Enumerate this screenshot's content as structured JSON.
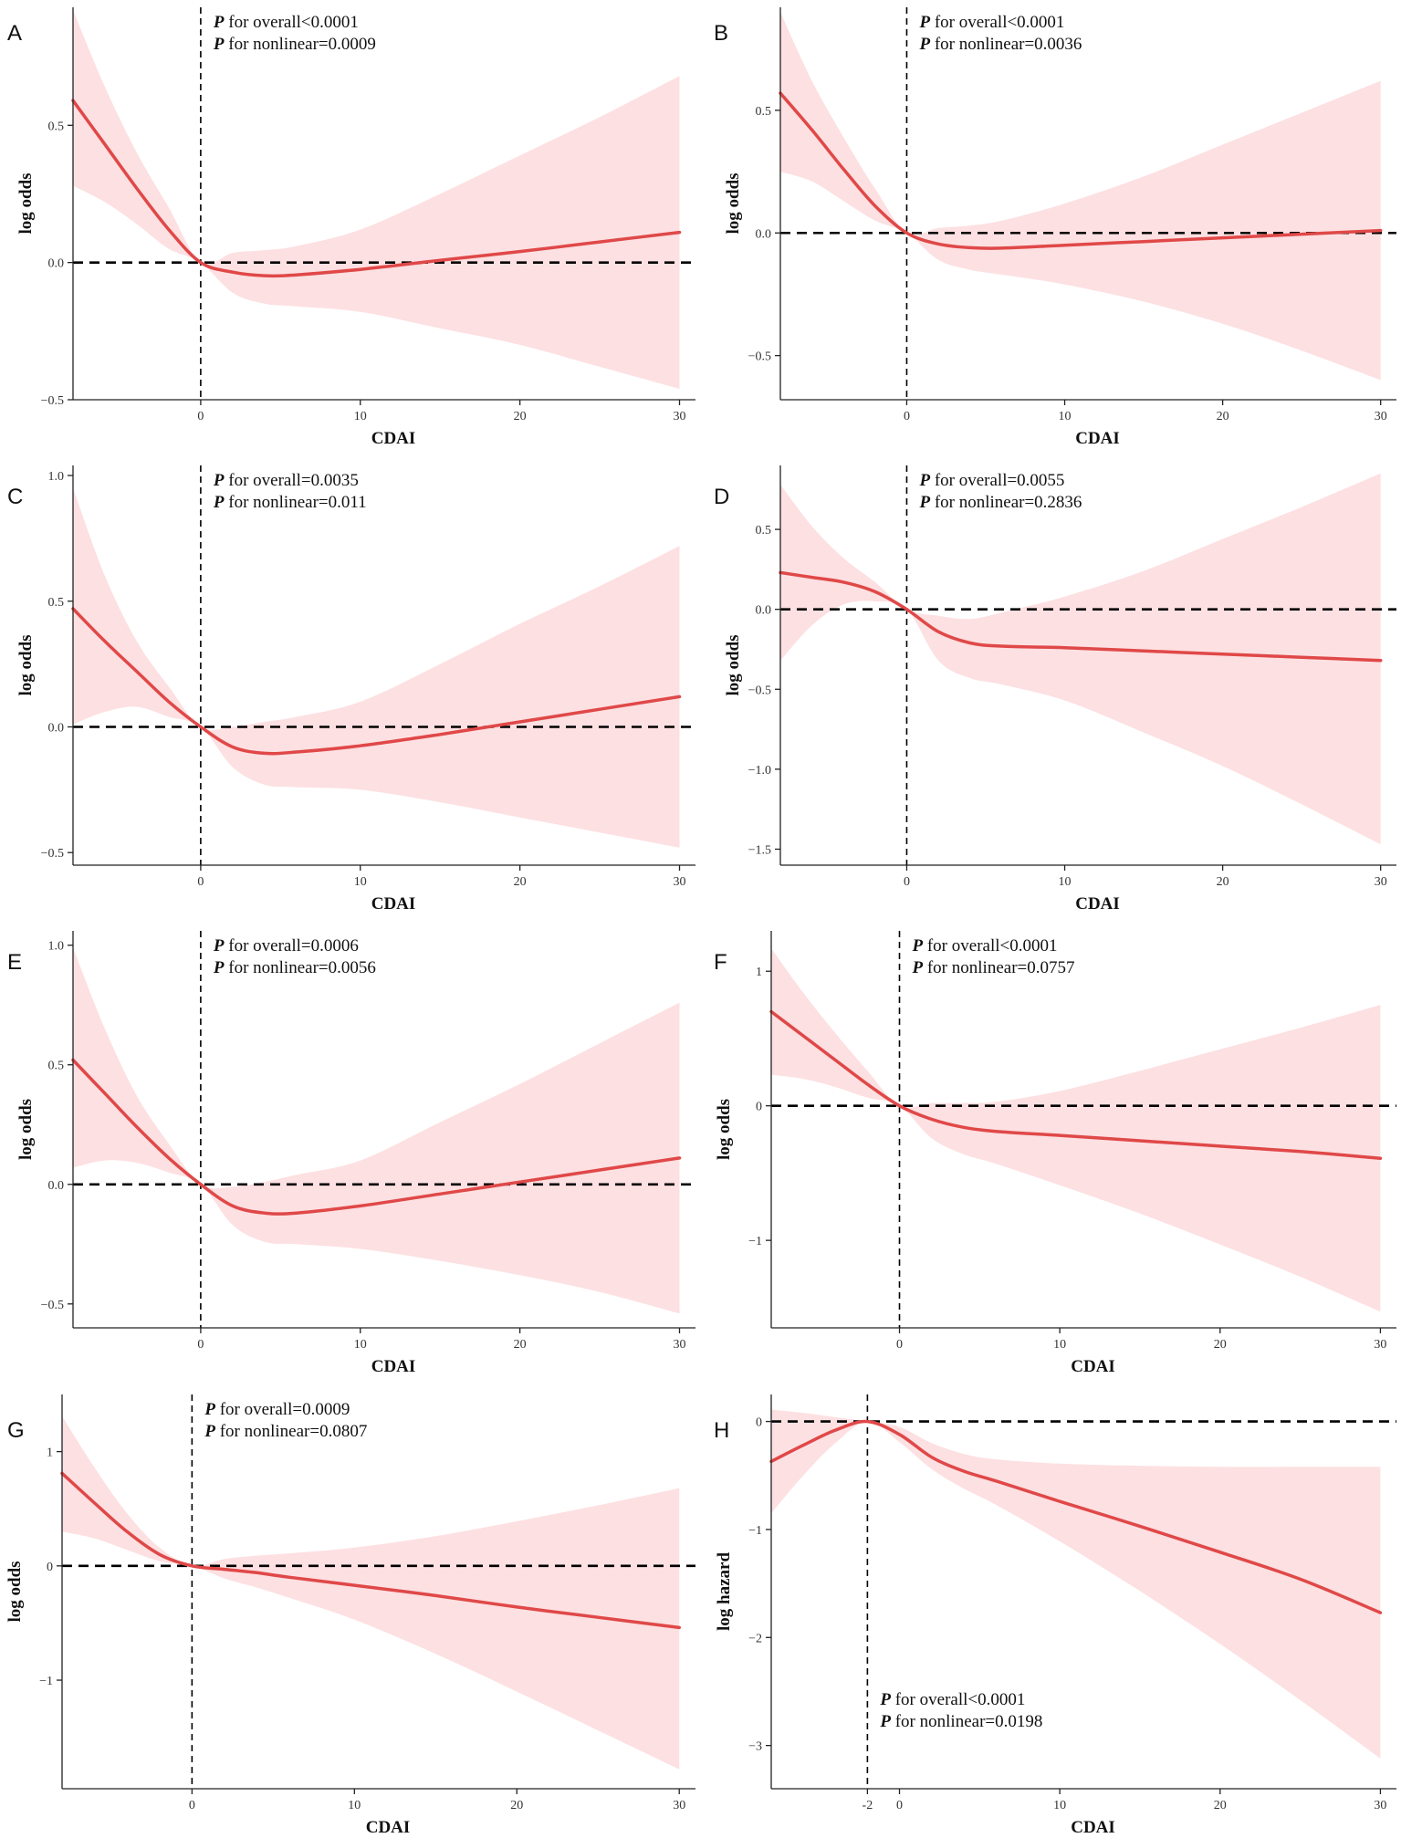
{
  "figure_colors": {
    "line": "#e04848",
    "band": "#fde0e2",
    "axis": "#222222"
  },
  "chart_data": [
    {
      "panel": "A",
      "type": "line",
      "xlabel": "CDAI",
      "ylabel": "log odds",
      "xlim": [
        -8,
        31
      ],
      "ylim": [
        -0.5,
        0.93
      ],
      "x_ticks": [
        0,
        10,
        20,
        30
      ],
      "y_ticks": [
        -0.5,
        0.0,
        0.5
      ],
      "x_tick_labels": [
        "0",
        "10",
        "20",
        "30"
      ],
      "y_tick_labels": [
        "−0.5",
        "0.0",
        "0.5"
      ],
      "ref_x": 0,
      "ref_y": 0,
      "p_overall": "P for overall<0.0001",
      "p_nonlinear": "P for nonlinear=0.0009",
      "p_position": "top",
      "x": [
        -8,
        -6,
        -4,
        -2,
        0,
        2,
        4,
        6,
        10,
        15,
        20,
        25,
        30
      ],
      "y": [
        0.59,
        0.43,
        0.27,
        0.12,
        0.0,
        -0.035,
        -0.048,
        -0.045,
        -0.025,
        0.008,
        0.04,
        0.075,
        0.11
      ],
      "lower": [
        0.28,
        0.22,
        0.14,
        0.05,
        0.0,
        -0.11,
        -0.15,
        -0.16,
        -0.18,
        -0.24,
        -0.3,
        -0.38,
        -0.46
      ],
      "upper": [
        0.92,
        0.64,
        0.4,
        0.2,
        0.0,
        0.035,
        0.045,
        0.06,
        0.12,
        0.25,
        0.39,
        0.53,
        0.68
      ]
    },
    {
      "panel": "B",
      "type": "line",
      "xlabel": "CDAI",
      "ylabel": "log odds",
      "xlim": [
        -8,
        31
      ],
      "ylim": [
        -0.68,
        0.92
      ],
      "x_ticks": [
        0,
        10,
        20,
        30
      ],
      "y_ticks": [
        -0.5,
        0.0,
        0.5
      ],
      "x_tick_labels": [
        "0",
        "10",
        "20",
        "30"
      ],
      "y_tick_labels": [
        "−0.5",
        "0.0",
        "0.5"
      ],
      "ref_x": 0,
      "ref_y": 0,
      "p_overall": "P for overall<0.0001",
      "p_nonlinear": "P for nonlinear=0.0036",
      "p_position": "top",
      "x": [
        -8,
        -6,
        -4,
        -2,
        0,
        2,
        4,
        6,
        10,
        15,
        20,
        25,
        30
      ],
      "y": [
        0.57,
        0.42,
        0.26,
        0.11,
        0.0,
        -0.045,
        -0.06,
        -0.062,
        -0.05,
        -0.035,
        -0.02,
        -0.005,
        0.01
      ],
      "lower": [
        0.25,
        0.21,
        0.13,
        0.05,
        0.0,
        -0.11,
        -0.15,
        -0.17,
        -0.21,
        -0.28,
        -0.37,
        -0.48,
        -0.6
      ],
      "upper": [
        0.9,
        0.62,
        0.39,
        0.18,
        0.0,
        0.02,
        0.03,
        0.05,
        0.12,
        0.23,
        0.36,
        0.49,
        0.62
      ]
    },
    {
      "panel": "C",
      "type": "line",
      "xlabel": "CDAI",
      "ylabel": "log odds",
      "xlim": [
        -8,
        31
      ],
      "ylim": [
        -0.55,
        1.04
      ],
      "x_ticks": [
        0,
        10,
        20,
        30
      ],
      "y_ticks": [
        -0.5,
        0.0,
        0.5,
        1.0
      ],
      "x_tick_labels": [
        "0",
        "10",
        "20",
        "30"
      ],
      "y_tick_labels": [
        "−0.5",
        "0.0",
        "0.5",
        "1.0"
      ],
      "ref_x": 0,
      "ref_y": 0,
      "p_overall": "P for overall=0.0035",
      "p_nonlinear": "P for nonlinear=0.011",
      "p_position": "top",
      "x": [
        -8,
        -6,
        -4,
        -2,
        0,
        2,
        4,
        6,
        10,
        15,
        20,
        25,
        30
      ],
      "y": [
        0.47,
        0.34,
        0.22,
        0.1,
        0.0,
        -0.08,
        -0.105,
        -0.1,
        -0.075,
        -0.03,
        0.02,
        0.07,
        0.12
      ],
      "lower": [
        0.01,
        0.06,
        0.08,
        0.04,
        0.0,
        -0.16,
        -0.23,
        -0.24,
        -0.25,
        -0.3,
        -0.36,
        -0.42,
        -0.48
      ],
      "upper": [
        0.95,
        0.6,
        0.34,
        0.16,
        0.0,
        0.0,
        0.02,
        0.04,
        0.1,
        0.25,
        0.41,
        0.56,
        0.72
      ]
    },
    {
      "panel": "D",
      "type": "line",
      "xlabel": "CDAI",
      "ylabel": "log odds",
      "xlim": [
        -8,
        31
      ],
      "ylim": [
        -1.6,
        0.9
      ],
      "x_ticks": [
        0,
        10,
        20,
        30
      ],
      "y_ticks": [
        -1.5,
        -1.0,
        -0.5,
        0.0,
        0.5
      ],
      "x_tick_labels": [
        "0",
        "10",
        "20",
        "30"
      ],
      "y_tick_labels": [
        "−1.5",
        "−1.0",
        "−0.5",
        "0.0",
        "0.5"
      ],
      "ref_x": 0,
      "ref_y": 0,
      "p_overall": "P for overall=0.0055",
      "p_nonlinear": "P for nonlinear=0.2836",
      "p_position": "top",
      "x": [
        -8,
        -6,
        -4,
        -2,
        0,
        2,
        4,
        6,
        10,
        15,
        20,
        25,
        30
      ],
      "y": [
        0.23,
        0.2,
        0.17,
        0.11,
        0.0,
        -0.14,
        -0.21,
        -0.23,
        -0.24,
        -0.26,
        -0.28,
        -0.3,
        -0.32
      ],
      "lower": [
        -0.32,
        -0.1,
        0.03,
        0.05,
        0.0,
        -0.32,
        -0.43,
        -0.47,
        -0.57,
        -0.77,
        -0.98,
        -1.22,
        -1.47
      ],
      "upper": [
        0.78,
        0.52,
        0.32,
        0.17,
        0.0,
        -0.04,
        -0.06,
        -0.02,
        0.08,
        0.24,
        0.44,
        0.64,
        0.85
      ]
    },
    {
      "panel": "E",
      "type": "line",
      "xlabel": "CDAI",
      "ylabel": "log odds",
      "xlim": [
        -8,
        31
      ],
      "ylim": [
        -0.6,
        1.06
      ],
      "x_ticks": [
        0,
        10,
        20,
        30
      ],
      "y_ticks": [
        -0.5,
        0.0,
        0.5,
        1.0
      ],
      "x_tick_labels": [
        "0",
        "10",
        "20",
        "30"
      ],
      "y_tick_labels": [
        "−0.5",
        "0.0",
        "0.5",
        "1.0"
      ],
      "ref_x": 0,
      "ref_y": 0,
      "p_overall": "P for overall=0.0006",
      "p_nonlinear": "P for nonlinear=0.0056",
      "p_position": "top",
      "x": [
        -8,
        -6,
        -4,
        -2,
        0,
        2,
        4,
        6,
        10,
        15,
        20,
        25,
        30
      ],
      "y": [
        0.52,
        0.38,
        0.24,
        0.11,
        0.0,
        -0.09,
        -0.12,
        -0.12,
        -0.09,
        -0.04,
        0.01,
        0.06,
        0.11
      ],
      "lower": [
        0.07,
        0.1,
        0.09,
        0.05,
        0.0,
        -0.17,
        -0.24,
        -0.25,
        -0.27,
        -0.32,
        -0.38,
        -0.45,
        -0.54
      ],
      "upper": [
        0.99,
        0.65,
        0.37,
        0.17,
        0.0,
        -0.01,
        0.01,
        0.04,
        0.1,
        0.26,
        0.42,
        0.59,
        0.76
      ]
    },
    {
      "panel": "F",
      "type": "line",
      "xlabel": "CDAI",
      "ylabel": "log odds",
      "xlim": [
        -8,
        31
      ],
      "ylim": [
        -1.65,
        1.3
      ],
      "x_ticks": [
        0,
        10,
        20,
        30
      ],
      "y_ticks": [
        -1,
        0,
        1
      ],
      "x_tick_labels": [
        "0",
        "10",
        "20",
        "30"
      ],
      "y_tick_labels": [
        "−1",
        "0",
        "1"
      ],
      "ref_x": 0,
      "ref_y": 0,
      "p_overall": "P for overall<0.0001",
      "p_nonlinear": "P for nonlinear=0.0757",
      "p_position": "top",
      "x": [
        -8,
        -6,
        -4,
        -2,
        0,
        2,
        4,
        6,
        10,
        15,
        20,
        25,
        30
      ],
      "y": [
        0.7,
        0.52,
        0.34,
        0.16,
        0.0,
        -0.1,
        -0.16,
        -0.19,
        -0.22,
        -0.26,
        -0.3,
        -0.34,
        -0.39
      ],
      "lower": [
        0.23,
        0.2,
        0.14,
        0.06,
        0.0,
        -0.24,
        -0.36,
        -0.43,
        -0.59,
        -0.8,
        -1.03,
        -1.27,
        -1.53
      ],
      "upper": [
        1.17,
        0.84,
        0.54,
        0.26,
        0.0,
        0.02,
        0.02,
        0.03,
        0.11,
        0.26,
        0.42,
        0.58,
        0.75
      ]
    },
    {
      "panel": "G",
      "type": "line",
      "xlabel": "CDAI",
      "ylabel": "log odds",
      "xlim": [
        -8,
        31
      ],
      "ylim": [
        -1.95,
        1.5
      ],
      "x_ticks": [
        0,
        10,
        20,
        30
      ],
      "y_ticks": [
        -1,
        0,
        1
      ],
      "x_tick_labels": [
        "0",
        "10",
        "20",
        "30"
      ],
      "y_tick_labels": [
        "−1",
        "0",
        "1"
      ],
      "ref_x": 0,
      "ref_y": 0,
      "p_overall": "P for overall=0.0009",
      "p_nonlinear": "P for nonlinear=0.0807",
      "p_position": "top",
      "x": [
        -8,
        -6,
        -4,
        -2,
        0,
        2,
        4,
        6,
        10,
        15,
        20,
        25,
        30
      ],
      "y": [
        0.81,
        0.55,
        0.3,
        0.1,
        0.0,
        -0.03,
        -0.06,
        -0.1,
        -0.17,
        -0.26,
        -0.36,
        -0.45,
        -0.54
      ],
      "lower": [
        0.3,
        0.24,
        0.14,
        0.04,
        0.0,
        -0.11,
        -0.19,
        -0.28,
        -0.47,
        -0.77,
        -1.1,
        -1.44,
        -1.78
      ],
      "upper": [
        1.31,
        0.86,
        0.46,
        0.16,
        0.0,
        0.06,
        0.09,
        0.11,
        0.16,
        0.26,
        0.39,
        0.53,
        0.68
      ]
    },
    {
      "panel": "H",
      "type": "line",
      "xlabel": "CDAI",
      "ylabel": "log hazard",
      "xlim": [
        -8,
        31
      ],
      "ylim": [
        -3.4,
        0.25
      ],
      "x_ticks": [
        -2,
        0,
        10,
        20,
        30
      ],
      "y_ticks": [
        -3,
        -2,
        -1,
        0
      ],
      "x_tick_labels": [
        "-2",
        "0",
        "10",
        "20",
        "30"
      ],
      "y_tick_labels": [
        "−3",
        "−2",
        "−1",
        "0"
      ],
      "ref_x": -2,
      "ref_y": 0,
      "p_overall": "P for overall<0.0001",
      "p_nonlinear": "P for nonlinear=0.0198",
      "p_position": "bottom",
      "x": [
        -8,
        -6,
        -4,
        -2,
        0,
        2,
        4,
        6,
        10,
        15,
        20,
        25,
        30
      ],
      "y": [
        -0.37,
        -0.22,
        -0.08,
        0.0,
        -0.12,
        -0.33,
        -0.46,
        -0.55,
        -0.74,
        -0.97,
        -1.21,
        -1.46,
        -1.77
      ],
      "lower": [
        -0.85,
        -0.5,
        -0.2,
        0.0,
        -0.19,
        -0.44,
        -0.62,
        -0.77,
        -1.11,
        -1.57,
        -2.06,
        -2.58,
        -3.12
      ],
      "upper": [
        0.11,
        0.08,
        0.04,
        0.0,
        -0.05,
        -0.2,
        -0.3,
        -0.35,
        -0.39,
        -0.41,
        -0.42,
        -0.42,
        -0.42
      ]
    }
  ]
}
